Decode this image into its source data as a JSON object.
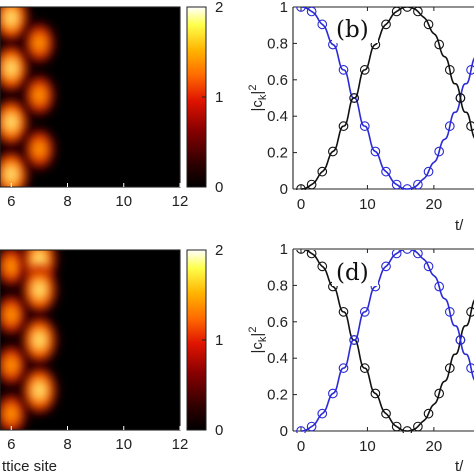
{
  "colors": {
    "blue": "#2a2ad6",
    "black": "#111111",
    "colormap_hot": [
      "#000000",
      "#3a0000",
      "#8a0000",
      "#d01a00",
      "#ff5a00",
      "#ff9a00",
      "#ffd21a",
      "#ffff7a",
      "#ffffff"
    ]
  },
  "chart_data": [
    {
      "type": "heatmap",
      "panel": "top-left",
      "colormap": "hot",
      "x_tick_labels": [
        "6",
        "8",
        "10",
        "12"
      ],
      "xlim": [
        5.6,
        12
      ],
      "x_visible_range": [
        5.5,
        12
      ],
      "xlabel": "",
      "colorbar": {
        "ticks": [
          "2",
          "1",
          "0"
        ],
        "range": [
          0,
          2
        ]
      },
      "blobs": [
        {
          "site": 6,
          "t_frac": 0.06,
          "intensity": 1.95
        },
        {
          "site": 6,
          "t_frac": 0.34,
          "intensity": 1.95
        },
        {
          "site": 6,
          "t_frac": 0.64,
          "intensity": 1.95
        },
        {
          "site": 6,
          "t_frac": 0.93,
          "intensity": 1.95
        },
        {
          "site": 7,
          "t_frac": 0.2,
          "intensity": 1.25
        },
        {
          "site": 7,
          "t_frac": 0.49,
          "intensity": 1.25
        },
        {
          "site": 7,
          "t_frac": 0.79,
          "intensity": 1.25
        }
      ]
    },
    {
      "type": "heatmap",
      "panel": "bottom-left",
      "colormap": "hot",
      "x_tick_labels": [
        "6",
        "8",
        "10",
        "12"
      ],
      "xlim": [
        5.6,
        12
      ],
      "xlabel": "ttice site",
      "colorbar": {
        "ticks": [
          "2",
          "1",
          "0"
        ],
        "range": [
          0,
          2
        ]
      },
      "blobs": [
        {
          "site": 6,
          "t_frac": 0.09,
          "intensity": 1.3
        },
        {
          "site": 6,
          "t_frac": 0.36,
          "intensity": 1.3
        },
        {
          "site": 6,
          "t_frac": 0.64,
          "intensity": 1.3
        },
        {
          "site": 6,
          "t_frac": 0.91,
          "intensity": 1.3
        },
        {
          "site": 7,
          "t_frac": 0.05,
          "intensity": 1.95
        },
        {
          "site": 7,
          "t_frac": 0.22,
          "intensity": 1.95
        },
        {
          "site": 7,
          "t_frac": 0.5,
          "intensity": 1.95
        },
        {
          "site": 7,
          "t_frac": 0.78,
          "intensity": 1.95
        }
      ]
    },
    {
      "type": "line",
      "panel": "top-right",
      "label": "(b)",
      "xlim": [
        -1,
        28
      ],
      "ylim": [
        0,
        1
      ],
      "x_ticks": [
        0,
        10,
        20
      ],
      "y_ticks": [
        0,
        0.2,
        0.4,
        0.6,
        0.8,
        1
      ],
      "y_tick_labels": [
        "0",
        "0.2",
        "0.4",
        "0.6",
        "0.8",
        "1"
      ],
      "ylabel_base": "|c",
      "ylabel_sub": "k",
      "ylabel_tail": "|",
      "ylabel_sup": "2",
      "xlabel": "t/",
      "series": [
        {
          "color": "blue",
          "start": "high",
          "x_end": 28
        },
        {
          "color": "black",
          "start": "low",
          "x_end": 28
        }
      ],
      "period": 32,
      "marker_x": [
        0,
        1.6,
        3.2,
        4.8,
        6.4,
        8,
        9.6,
        11.2,
        12.8,
        14.4,
        16,
        17.6,
        19.2,
        20.8,
        22.4,
        24,
        25.6
      ]
    },
    {
      "type": "line",
      "panel": "bottom-right",
      "label": "(d)",
      "xlim": [
        -1,
        28
      ],
      "ylim": [
        0,
        1
      ],
      "x_ticks": [
        0,
        10,
        20
      ],
      "y_ticks": [
        0,
        0.2,
        0.4,
        0.6,
        0.8,
        1
      ],
      "y_tick_labels": [
        "0",
        "0.2",
        "0.4",
        "0.6",
        "0.8",
        "1"
      ],
      "ylabel_base": "|c",
      "ylabel_sub": "k",
      "ylabel_tail": "|",
      "ylabel_sup": "2",
      "xlabel": "t/",
      "series": [
        {
          "color": "black",
          "start": "high",
          "x_end": 28
        },
        {
          "color": "blue",
          "start": "low",
          "x_end": 28
        }
      ],
      "period": 32,
      "marker_x": [
        0,
        1.6,
        3.2,
        4.8,
        6.4,
        8,
        9.6,
        11.2,
        12.8,
        14.4,
        16,
        17.6,
        19.2,
        20.8,
        22.4,
        24,
        25.6
      ]
    }
  ]
}
